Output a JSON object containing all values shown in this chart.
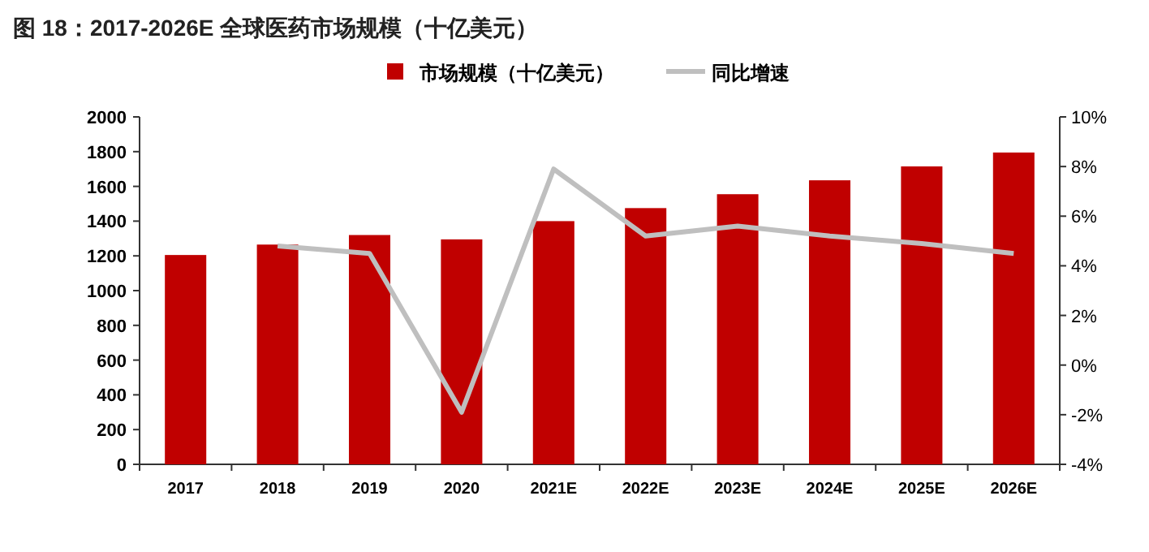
{
  "chart_data": {
    "type": "bar",
    "title": "图 18：2017-2026E 全球医药市场规模（十亿美元）",
    "categories": [
      "2017",
      "2018",
      "2019",
      "2020",
      "2021E",
      "2022E",
      "2023E",
      "2024E",
      "2025E",
      "2026E"
    ],
    "series": [
      {
        "name": "市场规模（十亿美元）",
        "color": "#c00000",
        "values": [
          1205,
          1265,
          1320,
          1295,
          1400,
          1475,
          1555,
          1635,
          1715,
          1795
        ]
      },
      {
        "name": "同比增速",
        "type": "line",
        "axis": "y2",
        "color": "#bfbfbf",
        "values": [
          null,
          4.8,
          4.5,
          -1.9,
          7.9,
          5.2,
          5.6,
          5.2,
          4.9,
          4.5
        ]
      }
    ],
    "ylim": [
      0,
      2000
    ],
    "yticks": [
      0,
      200,
      400,
      600,
      800,
      1000,
      1200,
      1400,
      1600,
      1800,
      2000
    ],
    "y2lim": [
      -4,
      10
    ],
    "y2ticks": [
      {
        "value": -4,
        "label": "-4%"
      },
      {
        "value": -2,
        "label": "-2%"
      },
      {
        "value": 0,
        "label": "0%"
      },
      {
        "value": 2,
        "label": "2%"
      },
      {
        "value": 4,
        "label": "4%"
      },
      {
        "value": 6,
        "label": "6%"
      },
      {
        "value": 8,
        "label": "8%"
      },
      {
        "value": 10,
        "label": "10%"
      }
    ],
    "legend": "top",
    "grid": false,
    "marker": "none"
  }
}
